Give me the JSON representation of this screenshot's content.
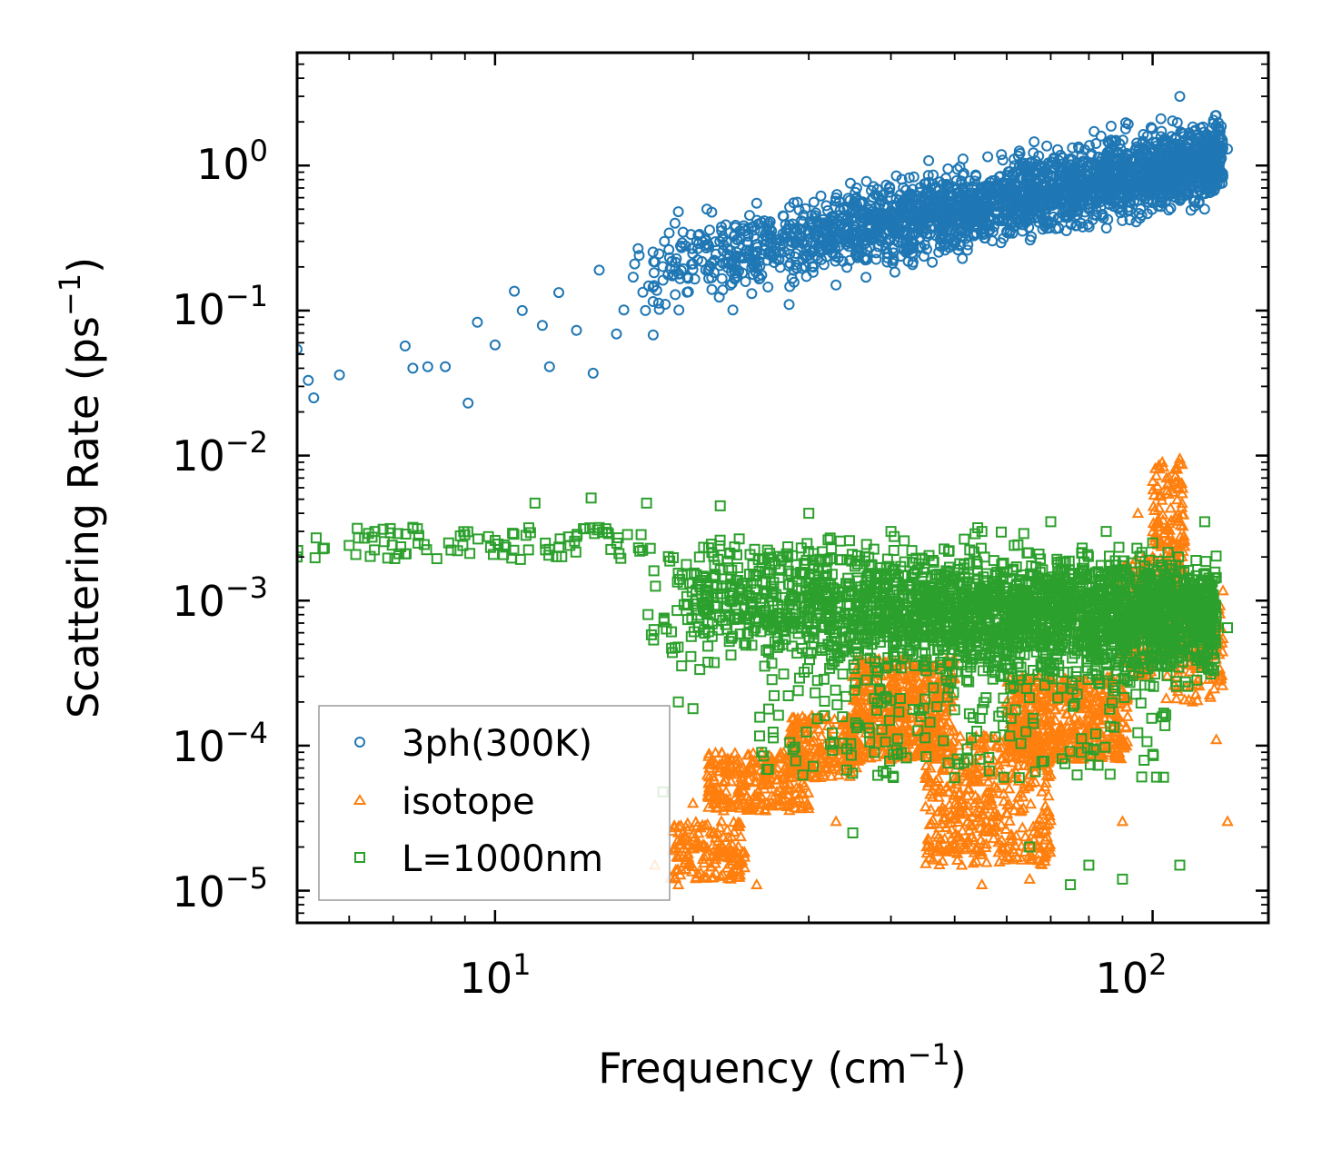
{
  "chart_data": {
    "type": "scatter",
    "xscale": "log",
    "yscale": "log",
    "xlim": [
      5.0,
      150.0
    ],
    "ylim": [
      6e-06,
      6.0
    ],
    "xlabel": "Frequency (cm",
    "xlabel_sup": "−1",
    "xlabel_end": ")",
    "ylabel": "Scattering Rate (ps",
    "ylabel_sup": "−1",
    "ylabel_end": ")",
    "x_ticks": [
      {
        "base": "10",
        "exp": "1",
        "value": 10
      },
      {
        "base": "10",
        "exp": "2",
        "value": 100
      }
    ],
    "y_ticks": [
      {
        "base": "10",
        "exp": "0",
        "value": 1
      },
      {
        "base": "10",
        "exp": "−1",
        "value": 0.1
      },
      {
        "base": "10",
        "exp": "−2",
        "value": 0.01
      },
      {
        "base": "10",
        "exp": "−3",
        "value": 0.001
      },
      {
        "base": "10",
        "exp": "−4",
        "value": 0.0001
      },
      {
        "base": "10",
        "exp": "−5",
        "value": 1e-05
      }
    ],
    "legend_position": "lower-left",
    "series": [
      {
        "name": "3ph(300K)",
        "color": "#1f77b4",
        "marker": "circle",
        "anchor_points": [
          [
            5.0,
            0.054
          ],
          [
            5.2,
            0.033
          ],
          [
            5.3,
            0.025
          ],
          [
            5.8,
            0.036
          ],
          [
            7.3,
            0.057
          ],
          [
            7.5,
            0.04
          ],
          [
            7.9,
            0.041
          ],
          [
            8.4,
            0.041
          ],
          [
            9.1,
            0.023
          ],
          [
            9.4,
            0.083
          ],
          [
            10.0,
            0.058
          ],
          [
            10.7,
            0.136
          ],
          [
            11.0,
            0.1
          ],
          [
            11.8,
            0.079
          ],
          [
            12.1,
            0.041
          ],
          [
            12.5,
            0.133
          ],
          [
            13.3,
            0.073
          ],
          [
            14.1,
            0.037
          ],
          [
            14.4,
            0.19
          ],
          [
            15.3,
            0.069
          ],
          [
            15.7,
            0.101
          ],
          [
            16.5,
            0.267
          ],
          [
            17.4,
            0.068
          ],
          [
            18.1,
            0.3
          ],
          [
            19.0,
            0.48
          ],
          [
            21.0,
            0.5
          ],
          [
            23.0,
            0.101
          ],
          [
            25.0,
            0.55
          ],
          [
            28.0,
            0.11
          ],
          [
            31.0,
            0.4
          ],
          [
            33.0,
            0.15
          ],
          [
            35.0,
            0.5
          ],
          [
            38.0,
            0.25
          ],
          [
            40.0,
            0.6
          ],
          [
            43.0,
            0.27
          ],
          [
            46.0,
            0.65
          ],
          [
            50.0,
            0.3
          ],
          [
            55.0,
            0.7
          ],
          [
            60.0,
            0.35
          ],
          [
            65.0,
            0.8
          ],
          [
            70.0,
            0.4
          ],
          [
            75.0,
            0.9
          ],
          [
            80.0,
            0.5
          ],
          [
            85.0,
            1.0
          ],
          [
            90.0,
            0.55
          ],
          [
            95.0,
            1.2
          ],
          [
            100.0,
            0.7
          ],
          [
            105.0,
            1.5
          ],
          [
            110.0,
            3.0
          ],
          [
            120.0,
            1.3
          ],
          [
            130.0,
            1.3
          ]
        ]
      },
      {
        "name": "isotope",
        "color": "#ff7f0e",
        "marker": "triangle",
        "anchor_points": [
          [
            17.5,
            1.5e-05
          ],
          [
            19.0,
            1.1e-05
          ],
          [
            20.0,
            4e-05
          ],
          [
            22.0,
            4.5e-05
          ],
          [
            25.0,
            1.1e-05
          ],
          [
            28.0,
            8e-05
          ],
          [
            30.0,
            0.00015
          ],
          [
            33.0,
            3e-05
          ],
          [
            35.0,
            0.0003
          ],
          [
            40.0,
            0.0008
          ],
          [
            45.0,
            0.00012
          ],
          [
            50.0,
            6e-05
          ],
          [
            55.0,
            1.1e-05
          ],
          [
            60.0,
            0.0002
          ],
          [
            65.0,
            1.2e-05
          ],
          [
            70.0,
            0.0002
          ],
          [
            75.0,
            0.0001
          ],
          [
            80.0,
            0.00015
          ],
          [
            85.0,
            0.0002
          ],
          [
            90.0,
            3e-05
          ],
          [
            95.0,
            0.004
          ],
          [
            100.0,
            0.002
          ],
          [
            105.0,
            0.007
          ],
          [
            110.0,
            0.0095
          ],
          [
            115.0,
            0.0002
          ],
          [
            120.0,
            0.0007
          ],
          [
            125.0,
            0.00011
          ],
          [
            130.0,
            3e-05
          ]
        ]
      },
      {
        "name": "L=1000nm",
        "color": "#2ca02c",
        "marker": "square",
        "anchor_points": [
          [
            5.0,
            0.002
          ],
          [
            5.5,
            0.0023
          ],
          [
            6.0,
            0.0024
          ],
          [
            7.3,
            0.0021
          ],
          [
            7.5,
            0.0032
          ],
          [
            8.5,
            0.0025
          ],
          [
            10.0,
            0.0026
          ],
          [
            11.5,
            0.0047
          ],
          [
            13.0,
            0.0024
          ],
          [
            14.0,
            0.0051
          ],
          [
            17.0,
            0.0047
          ],
          [
            18.0,
            4.8e-05
          ],
          [
            19.0,
            0.0002
          ],
          [
            20.0,
            0.00018
          ],
          [
            22.0,
            0.0045
          ],
          [
            25.0,
            0.0015
          ],
          [
            30.0,
            0.004
          ],
          [
            35.0,
            2.5e-05
          ],
          [
            40.0,
            0.003
          ],
          [
            45.0,
            0.001
          ],
          [
            50.0,
            6e-05
          ],
          [
            55.0,
            0.003
          ],
          [
            60.0,
            0.0005
          ],
          [
            65.0,
            2e-05
          ],
          [
            70.0,
            0.0035
          ],
          [
            75.0,
            1.1e-05
          ],
          [
            80.0,
            1.5e-05
          ],
          [
            85.0,
            0.003
          ],
          [
            90.0,
            1.2e-05
          ],
          [
            95.0,
            0.001
          ],
          [
            100.0,
            0.0025
          ],
          [
            110.0,
            1.5e-05
          ],
          [
            120.0,
            0.0035
          ],
          [
            130.0,
            0.00065
          ]
        ]
      }
    ]
  }
}
